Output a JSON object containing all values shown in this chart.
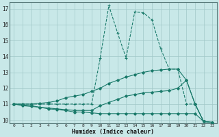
{
  "x": [
    0,
    1,
    2,
    3,
    4,
    5,
    6,
    7,
    8,
    9,
    10,
    11,
    12,
    13,
    14,
    15,
    16,
    17,
    18,
    19,
    20,
    21,
    22,
    23
  ],
  "line1": [
    11.0,
    10.9,
    10.85,
    10.8,
    10.7,
    10.65,
    10.6,
    10.5,
    10.5,
    10.45,
    10.4,
    10.4,
    10.4,
    10.4,
    10.4,
    10.4,
    10.4,
    10.4,
    10.4,
    10.4,
    10.4,
    10.4,
    9.9,
    9.85
  ],
  "line2": [
    11.0,
    10.95,
    10.9,
    10.8,
    10.75,
    10.7,
    10.65,
    10.6,
    10.6,
    10.6,
    10.9,
    11.1,
    11.3,
    11.5,
    11.6,
    11.7,
    11.75,
    11.8,
    11.85,
    12.0,
    12.5,
    11.0,
    9.9,
    9.85
  ],
  "line3": [
    11.0,
    11.0,
    11.0,
    11.05,
    11.1,
    11.2,
    11.4,
    11.5,
    11.6,
    11.8,
    12.0,
    12.3,
    12.5,
    12.7,
    12.85,
    13.0,
    13.1,
    13.15,
    13.2,
    13.2,
    12.5,
    11.0,
    9.9,
    9.85
  ],
  "line4": [
    11.0,
    11.0,
    11.0,
    11.0,
    11.0,
    11.0,
    11.0,
    11.0,
    11.0,
    11.0,
    13.9,
    17.2,
    15.5,
    13.9,
    16.8,
    16.75,
    16.3,
    14.5,
    13.2,
    13.2,
    11.0,
    11.0,
    9.9,
    9.85
  ],
  "bg_color": "#c8e8e8",
  "grid_color_major": "#a0c8c8",
  "grid_color_minor": "#b8d8d8",
  "line_color": "#1a7a6a",
  "xlabel": "Humidex (Indice chaleur)",
  "ylim": [
    9.8,
    17.4
  ],
  "xlim": [
    -0.5,
    23.5
  ],
  "yticks": [
    10,
    11,
    12,
    13,
    14,
    15,
    16,
    17
  ],
  "xticks": [
    0,
    1,
    2,
    3,
    4,
    5,
    6,
    7,
    8,
    9,
    10,
    11,
    12,
    13,
    14,
    15,
    16,
    17,
    18,
    19,
    20,
    21,
    22,
    23
  ]
}
